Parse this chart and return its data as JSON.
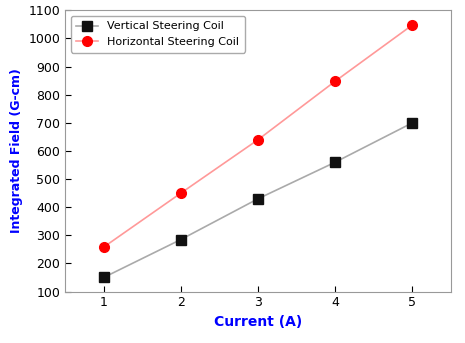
{
  "x": [
    1,
    2,
    3,
    4,
    5
  ],
  "vertical_y": [
    150,
    285,
    430,
    560,
    700
  ],
  "horizontal_y": [
    258,
    450,
    640,
    848,
    1048
  ],
  "vertical_label": "Vertical Steering Coil",
  "horizontal_label": "Horizontal Steering Coil",
  "vertical_line_color": "#aaaaaa",
  "horizontal_line_color": "#ff9999",
  "vertical_marker_color": "#111111",
  "horizontal_marker_color": "#ff0000",
  "xlabel": "Current (A)",
  "ylabel": "Integrated Field (G-cm)",
  "xlabel_color": "#0000ff",
  "ylabel_color": "#0000ff",
  "xlim": [
    0.5,
    5.5
  ],
  "ylim": [
    100,
    1100
  ],
  "yticks": [
    100,
    200,
    300,
    400,
    500,
    600,
    700,
    800,
    900,
    1000,
    1100
  ],
  "xticks": [
    1,
    2,
    3,
    4,
    5
  ],
  "legend_loc": "upper left",
  "marker_size": 7,
  "line_width": 1.2,
  "spine_color": "#999999",
  "background_color": "#ffffff"
}
